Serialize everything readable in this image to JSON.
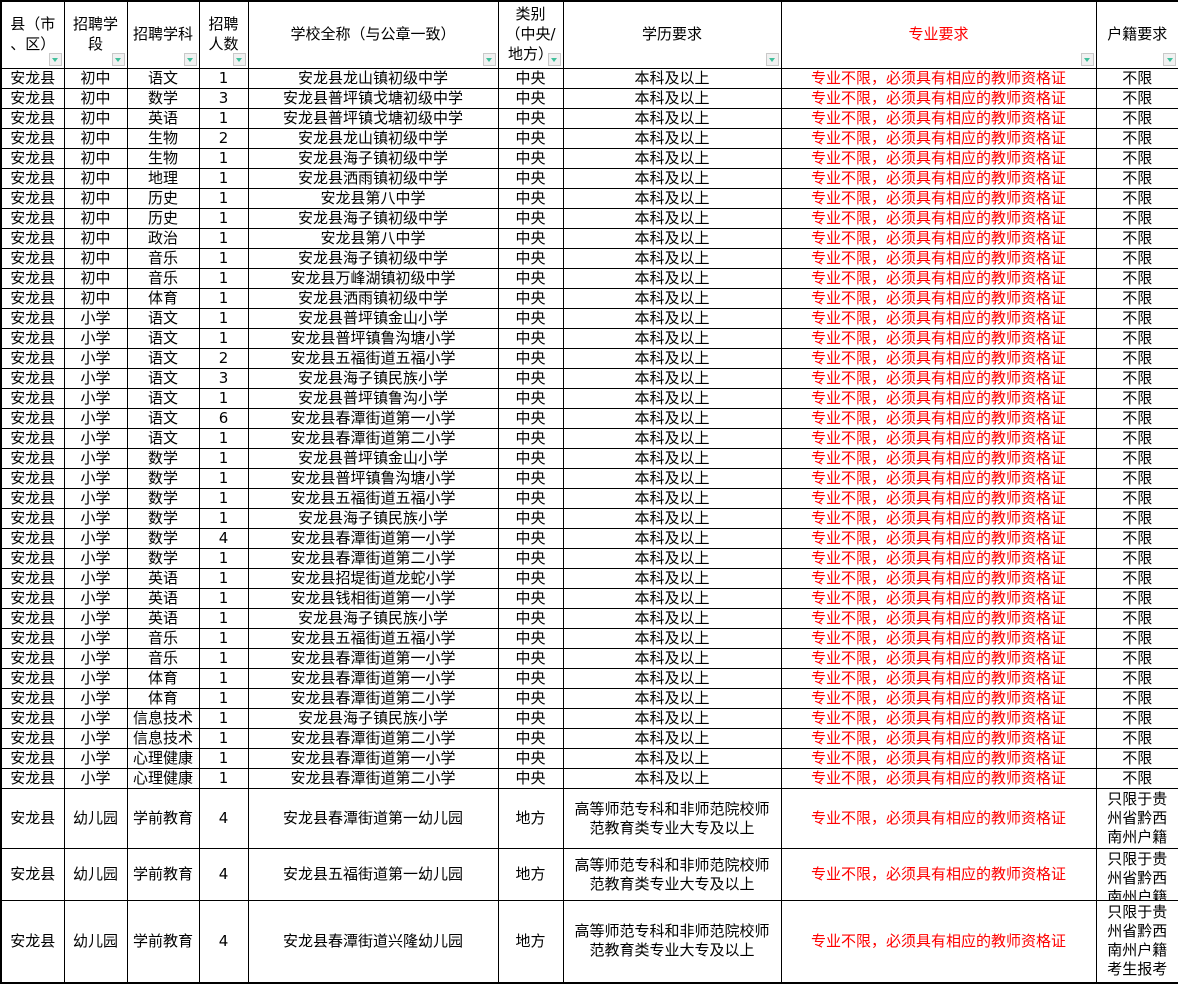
{
  "table": {
    "columns": [
      {
        "key": "county",
        "label": "县（市\n、区）"
      },
      {
        "key": "stage",
        "label": "招聘学\n段"
      },
      {
        "key": "subject",
        "label": "招聘学科"
      },
      {
        "key": "count",
        "label": "招聘\n人数"
      },
      {
        "key": "school",
        "label": "学校全称（与公章一致）"
      },
      {
        "key": "category",
        "label": "类别\n（中央/\n地方）"
      },
      {
        "key": "education",
        "label": "学历要求"
      },
      {
        "key": "major",
        "label": "专业要求",
        "accent": true
      },
      {
        "key": "hukou",
        "label": "户籍要求"
      }
    ],
    "rows": [
      [
        "安龙县",
        "初中",
        "语文",
        "1",
        "安龙县龙山镇初级中学",
        "中央",
        "本科及以上",
        "专业不限，必须具有相应的教师资格证",
        "不限"
      ],
      [
        "安龙县",
        "初中",
        "数学",
        "3",
        "安龙县普坪镇戈塘初级中学",
        "中央",
        "本科及以上",
        "专业不限，必须具有相应的教师资格证",
        "不限"
      ],
      [
        "安龙县",
        "初中",
        "英语",
        "1",
        "安龙县普坪镇戈塘初级中学",
        "中央",
        "本科及以上",
        "专业不限，必须具有相应的教师资格证",
        "不限"
      ],
      [
        "安龙县",
        "初中",
        "生物",
        "2",
        "安龙县龙山镇初级中学",
        "中央",
        "本科及以上",
        "专业不限，必须具有相应的教师资格证",
        "不限"
      ],
      [
        "安龙县",
        "初中",
        "生物",
        "1",
        "安龙县海子镇初级中学",
        "中央",
        "本科及以上",
        "专业不限，必须具有相应的教师资格证",
        "不限"
      ],
      [
        "安龙县",
        "初中",
        "地理",
        "1",
        "安龙县洒雨镇初级中学",
        "中央",
        "本科及以上",
        "专业不限，必须具有相应的教师资格证",
        "不限"
      ],
      [
        "安龙县",
        "初中",
        "历史",
        "1",
        "安龙县第八中学",
        "中央",
        "本科及以上",
        "专业不限，必须具有相应的教师资格证",
        "不限"
      ],
      [
        "安龙县",
        "初中",
        "历史",
        "1",
        "安龙县海子镇初级中学",
        "中央",
        "本科及以上",
        "专业不限，必须具有相应的教师资格证",
        "不限"
      ],
      [
        "安龙县",
        "初中",
        "政治",
        "1",
        "安龙县第八中学",
        "中央",
        "本科及以上",
        "专业不限，必须具有相应的教师资格证",
        "不限"
      ],
      [
        "安龙县",
        "初中",
        "音乐",
        "1",
        "安龙县海子镇初级中学",
        "中央",
        "本科及以上",
        "专业不限，必须具有相应的教师资格证",
        "不限"
      ],
      [
        "安龙县",
        "初中",
        "音乐",
        "1",
        "安龙县万峰湖镇初级中学",
        "中央",
        "本科及以上",
        "专业不限，必须具有相应的教师资格证",
        "不限"
      ],
      [
        "安龙县",
        "初中",
        "体育",
        "1",
        "安龙县洒雨镇初级中学",
        "中央",
        "本科及以上",
        "专业不限，必须具有相应的教师资格证",
        "不限"
      ],
      [
        "安龙县",
        "小学",
        "语文",
        "1",
        "安龙县普坪镇金山小学",
        "中央",
        "本科及以上",
        "专业不限，必须具有相应的教师资格证",
        "不限"
      ],
      [
        "安龙县",
        "小学",
        "语文",
        "1",
        "安龙县普坪镇鲁沟塘小学",
        "中央",
        "本科及以上",
        "专业不限，必须具有相应的教师资格证",
        "不限"
      ],
      [
        "安龙县",
        "小学",
        "语文",
        "2",
        "安龙县五福街道五福小学",
        "中央",
        "本科及以上",
        "专业不限，必须具有相应的教师资格证",
        "不限"
      ],
      [
        "安龙县",
        "小学",
        "语文",
        "3",
        "安龙县海子镇民族小学",
        "中央",
        "本科及以上",
        "专业不限，必须具有相应的教师资格证",
        "不限"
      ],
      [
        "安龙县",
        "小学",
        "语文",
        "1",
        "安龙县普坪镇鲁沟小学",
        "中央",
        "本科及以上",
        "专业不限，必须具有相应的教师资格证",
        "不限"
      ],
      [
        "安龙县",
        "小学",
        "语文",
        "6",
        "安龙县春潭街道第一小学",
        "中央",
        "本科及以上",
        "专业不限，必须具有相应的教师资格证",
        "不限"
      ],
      [
        "安龙县",
        "小学",
        "语文",
        "1",
        "安龙县春潭街道第二小学",
        "中央",
        "本科及以上",
        "专业不限，必须具有相应的教师资格证",
        "不限"
      ],
      [
        "安龙县",
        "小学",
        "数学",
        "1",
        "安龙县普坪镇金山小学",
        "中央",
        "本科及以上",
        "专业不限，必须具有相应的教师资格证",
        "不限"
      ],
      [
        "安龙县",
        "小学",
        "数学",
        "1",
        "安龙县普坪镇鲁沟塘小学",
        "中央",
        "本科及以上",
        "专业不限，必须具有相应的教师资格证",
        "不限"
      ],
      [
        "安龙县",
        "小学",
        "数学",
        "1",
        "安龙县五福街道五福小学",
        "中央",
        "本科及以上",
        "专业不限，必须具有相应的教师资格证",
        "不限"
      ],
      [
        "安龙县",
        "小学",
        "数学",
        "1",
        "安龙县海子镇民族小学",
        "中央",
        "本科及以上",
        "专业不限，必须具有相应的教师资格证",
        "不限"
      ],
      [
        "安龙县",
        "小学",
        "数学",
        "4",
        "安龙县春潭街道第一小学",
        "中央",
        "本科及以上",
        "专业不限，必须具有相应的教师资格证",
        "不限"
      ],
      [
        "安龙县",
        "小学",
        "数学",
        "1",
        "安龙县春潭街道第二小学",
        "中央",
        "本科及以上",
        "专业不限，必须具有相应的教师资格证",
        "不限"
      ],
      [
        "安龙县",
        "小学",
        "英语",
        "1",
        "安龙县招堤街道龙蛇小学",
        "中央",
        "本科及以上",
        "专业不限，必须具有相应的教师资格证",
        "不限"
      ],
      [
        "安龙县",
        "小学",
        "英语",
        "1",
        "安龙县钱相街道第一小学",
        "中央",
        "本科及以上",
        "专业不限，必须具有相应的教师资格证",
        "不限"
      ],
      [
        "安龙县",
        "小学",
        "英语",
        "1",
        "安龙县海子镇民族小学",
        "中央",
        "本科及以上",
        "专业不限，必须具有相应的教师资格证",
        "不限"
      ],
      [
        "安龙县",
        "小学",
        "音乐",
        "1",
        "安龙县五福街道五福小学",
        "中央",
        "本科及以上",
        "专业不限，必须具有相应的教师资格证",
        "不限"
      ],
      [
        "安龙县",
        "小学",
        "音乐",
        "1",
        "安龙县春潭街道第一小学",
        "中央",
        "本科及以上",
        "专业不限，必须具有相应的教师资格证",
        "不限"
      ],
      [
        "安龙县",
        "小学",
        "体育",
        "1",
        "安龙县春潭街道第一小学",
        "中央",
        "本科及以上",
        "专业不限，必须具有相应的教师资格证",
        "不限"
      ],
      [
        "安龙县",
        "小学",
        "体育",
        "1",
        "安龙县春潭街道第二小学",
        "中央",
        "本科及以上",
        "专业不限，必须具有相应的教师资格证",
        "不限"
      ],
      [
        "安龙县",
        "小学",
        "信息技术",
        "1",
        "安龙县海子镇民族小学",
        "中央",
        "本科及以上",
        "专业不限，必须具有相应的教师资格证",
        "不限"
      ],
      [
        "安龙县",
        "小学",
        "信息技术",
        "1",
        "安龙县春潭街道第二小学",
        "中央",
        "本科及以上",
        "专业不限，必须具有相应的教师资格证",
        "不限"
      ],
      [
        "安龙县",
        "小学",
        "心理健康",
        "1",
        "安龙县春潭街道第一小学",
        "中央",
        "本科及以上",
        "专业不限，必须具有相应的教师资格证",
        "不限"
      ],
      [
        "安龙县",
        "小学",
        "心理健康",
        "1",
        "安龙县春潭街道第二小学",
        "中央",
        "本科及以上",
        "专业不限，必须具有相应的教师资格证",
        "不限"
      ],
      [
        "安龙县",
        "幼儿园",
        "学前教育",
        "4",
        "安龙县春潭街道第一幼儿园",
        "地方",
        "高等师范专科和非师范院校师范教育类专业大专及以上",
        "专业不限，必须具有相应的教师资格证",
        "只限于贵州省黔西南州户籍"
      ],
      [
        "安龙县",
        "幼儿园",
        "学前教育",
        "4",
        "安龙县五福街道第一幼儿园",
        "地方",
        "高等师范专科和非师范院校师范教育类专业大专及以上",
        "专业不限，必须具有相应的教师资格证",
        "只限于贵州省黔西南州户籍"
      ],
      [
        "安龙县",
        "幼儿园",
        "学前教育",
        "4",
        "安龙县春潭街道兴隆幼儿园",
        "地方",
        "高等师范专科和非师范院校师范教育类专业大专及以上",
        "专业不限，必须具有相应的教师资格证",
        "只限于贵州省黔西南州户籍考生报考"
      ]
    ],
    "kindergarten_row_start_index": 36
  },
  "colors": {
    "accent_red": "#ff0000",
    "filter_arrow_teal": "#41bf9b",
    "grid": "#000000"
  },
  "icons": {
    "filter_dropdown": "filter-dropdown-icon"
  }
}
